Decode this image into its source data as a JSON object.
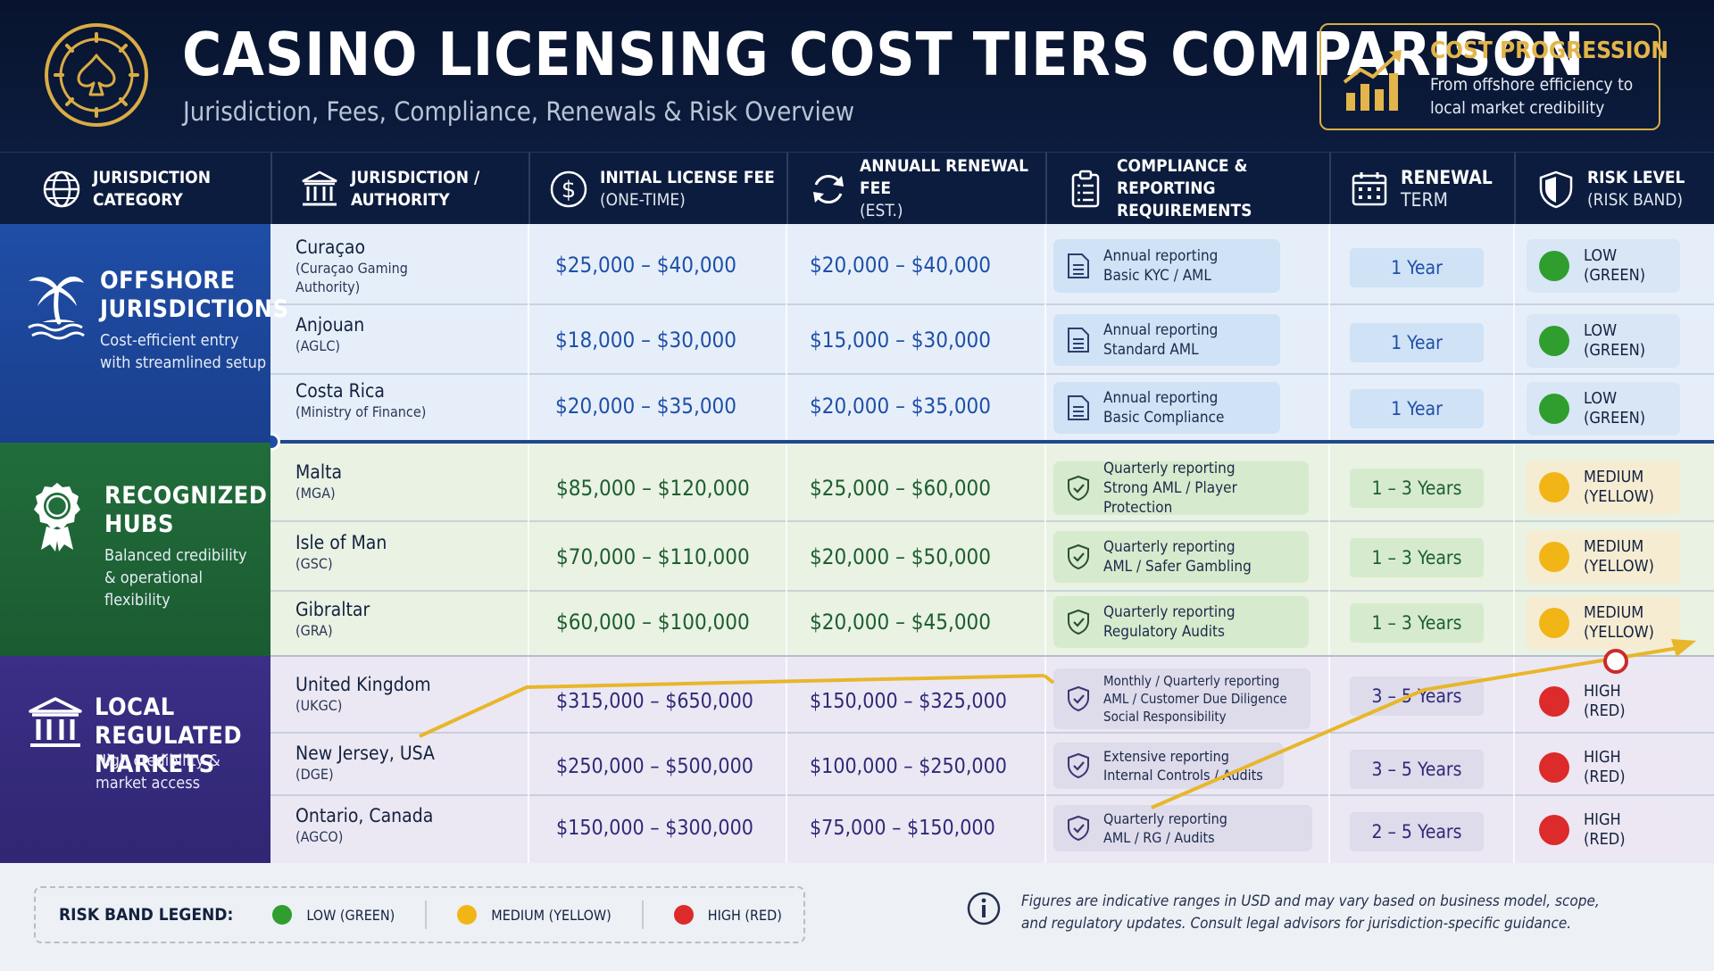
{
  "header": {
    "title": "CASINO LICENSING COST TIERS COMPARISON",
    "subtitle": "Jurisdiction, Fees, Compliance, Renewals & Risk Overview",
    "progression_title": "COST PROGRESSION",
    "progression_desc": "From offshore efficiency to local market credibility"
  },
  "columns": [
    {
      "line1": "JURISDICTION",
      "line2": "CATEGORY",
      "icon": "globe-icon"
    },
    {
      "line1": "JURISDICTION /",
      "line2": "AUTHORITY",
      "icon": "building-icon"
    },
    {
      "line1": "INITIAL LICENSE FEE",
      "line2": "(ONE-TIME)",
      "icon": "dollar-icon"
    },
    {
      "line1": "ANNUALL RENEWAL FEE",
      "line2": "(EST.)",
      "icon": "refresh-icon"
    },
    {
      "line1": "COMPLIANCE & REPORTING",
      "line2": "REQUIREMENTS",
      "icon": "clipboard-icon"
    },
    {
      "line1": "RENEWAL",
      "line2": "TERM",
      "icon": "calendar-icon"
    },
    {
      "line1": "RISK LEVEL",
      "line2": "(RISK BAND)",
      "icon": "shield-icon"
    }
  ],
  "tiers": {
    "offshore": {
      "name_line1": "OFFSHORE",
      "name_line2": "JURISDICTIONS",
      "desc_line1": "Cost-efficient entry",
      "desc_line2": "with streamlined setup",
      "color": "#1f4ea6"
    },
    "hubs": {
      "name_line1": "RECOGNIZED",
      "name_line2": "HUBS",
      "desc_line1": "Balanced credibility",
      "desc_line2": "& operational flexibility",
      "color": "#216d3b"
    },
    "local": {
      "name_line1": "LOCAL REGULATED",
      "name_line2": "MARKETS",
      "desc_line1": "High credibility &",
      "desc_line2": "market access",
      "color": "#3a2f86"
    }
  },
  "rows": [
    {
      "name": "Curaçao",
      "authority_line1": "(Curaçao Gaming",
      "authority_line2": "Authority)",
      "initial_fee": "$25,000 – $40,000",
      "renewal_fee": "$20,000 – $40,000",
      "comp_line1": "Annual reporting",
      "comp_line2": "Basic KYC / AML",
      "comp_line3": "",
      "term": "1 Year",
      "risk_line1": "LOW",
      "risk_line2": "(GREEN)",
      "risk_color": "#2f9e2f"
    },
    {
      "name": "Anjouan",
      "authority_line1": "(AGLC)",
      "authority_line2": "",
      "initial_fee": "$18,000 – $30,000",
      "renewal_fee": "$15,000 – $30,000",
      "comp_line1": "Annual reporting",
      "comp_line2": "Standard AML",
      "comp_line3": "",
      "term": "1 Year",
      "risk_line1": "LOW",
      "risk_line2": "(GREEN)",
      "risk_color": "#2f9e2f"
    },
    {
      "name": "Costa Rica",
      "authority_line1": "(Ministry of Finance)",
      "authority_line2": "",
      "initial_fee": "$20,000 – $35,000",
      "renewal_fee": "$20,000 – $35,000",
      "comp_line1": "Annual reporting",
      "comp_line2": "Basic Compliance",
      "comp_line3": "",
      "term": "1 Year",
      "risk_line1": "LOW",
      "risk_line2": "(GREEN)",
      "risk_color": "#2f9e2f"
    },
    {
      "name": "Malta",
      "authority_line1": "(MGA)",
      "authority_line2": "",
      "initial_fee": "$85,000 – $120,000",
      "renewal_fee": "$25,000 – $60,000",
      "comp_line1": "Quarterly reporting",
      "comp_line2": "Strong AML / Player Protection",
      "comp_line3": "",
      "term": "1 – 3 Years",
      "risk_line1": "MEDIUM",
      "risk_line2": "(YELLOW)",
      "risk_color": "#f2b516"
    },
    {
      "name": "Isle of Man",
      "authority_line1": "(GSC)",
      "authority_line2": "",
      "initial_fee": "$70,000 – $110,000",
      "renewal_fee": "$20,000 – $50,000",
      "comp_line1": "Quarterly reporting",
      "comp_line2": "AML / Safer Gambling",
      "comp_line3": "",
      "term": "1 – 3 Years",
      "risk_line1": "MEDIUM",
      "risk_line2": "(YELLOW)",
      "risk_color": "#f2b516"
    },
    {
      "name": "Gibraltar",
      "authority_line1": "(GRA)",
      "authority_line2": "",
      "initial_fee": "$60,000 – $100,000",
      "renewal_fee": "$20,000 – $45,000",
      "comp_line1": "Quarterly reporting",
      "comp_line2": "Regulatory Audits",
      "comp_line3": "",
      "term": "1 – 3 Years",
      "risk_line1": "MEDIUM",
      "risk_line2": "(YELLOW)",
      "risk_color": "#f2b516"
    },
    {
      "name": "United Kingdom",
      "authority_line1": "(UKGC)",
      "authority_line2": "",
      "initial_fee": "$315,000 – $650,000",
      "renewal_fee": "$150,000 – $325,000",
      "comp_line1": "Monthly / Quarterly reporting",
      "comp_line2": "AML / Customer Due Diligence",
      "comp_line3": "Social Responsibility",
      "term": "3 – 5 Years",
      "risk_line1": "HIGH",
      "risk_line2": "(RED)",
      "risk_color": "#dd2a2a"
    },
    {
      "name": "New Jersey, USA",
      "authority_line1": "(DGE)",
      "authority_line2": "",
      "initial_fee": "$250,000 – $500,000",
      "renewal_fee": "$100,000 – $250,000",
      "comp_line1": "Extensive reporting",
      "comp_line2": "Internal Controls / Audits",
      "comp_line3": "",
      "term": "3 – 5 Years",
      "risk_line1": "HIGH",
      "risk_line2": "(RED)",
      "risk_color": "#dd2a2a"
    },
    {
      "name": "Ontario, Canada",
      "authority_line1": "(AGCO)",
      "authority_line2": "",
      "initial_fee": "$150,000 – $300,000",
      "renewal_fee": "$75,000 – $150,000",
      "comp_line1": "Quarterly reporting",
      "comp_line2": "AML / RG / Audits",
      "comp_line3": "",
      "term": "2 – 5 Years",
      "risk_line1": "HIGH",
      "risk_line2": "(RED)",
      "risk_color": "#dd2a2a"
    }
  ],
  "legend": {
    "title": "RISK BAND LEGEND:",
    "items": [
      {
        "label": "LOW (GREEN)",
        "color": "#2f9e2f"
      },
      {
        "label": "MEDIUM (YELLOW)",
        "color": "#f2b516"
      },
      {
        "label": "HIGH (RED)",
        "color": "#dd2a2a"
      }
    ]
  },
  "footnote_line1": "Figures are indicative ranges in USD and may vary based on business model, scope,",
  "footnote_line2": "and regulatory updates. Consult legal advisors for jurisdiction-specific guidance.",
  "colors": {
    "navy": "#0c1c3e",
    "gold": "#d9ac45",
    "accent_arrow": "#e8b62a"
  }
}
